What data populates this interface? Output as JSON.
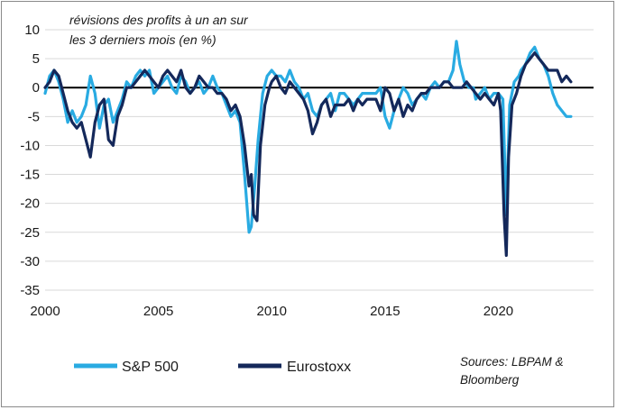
{
  "chart_data": {
    "type": "line",
    "title_lines": [
      "révisions des profits à un an sur",
      "les 3 derniers mois (en %)"
    ],
    "xlabel": "",
    "ylabel": "",
    "xlim": [
      2000,
      2024.2
    ],
    "ylim": [
      -35,
      10
    ],
    "y_ticks": [
      10,
      5,
      0,
      -5,
      -10,
      -15,
      -20,
      -25,
      -30,
      -35
    ],
    "y_tick_labels": [
      "10",
      "5",
      "0",
      "-5",
      "-10",
      "-15",
      "-20",
      "-25",
      "-30",
      "-35"
    ],
    "x_ticks": [
      2000,
      2005,
      2010,
      2015,
      2020
    ],
    "x_tick_labels": [
      "2000",
      "2005",
      "2010",
      "2015",
      "2020"
    ],
    "grid": "horizontal",
    "legend_position": "bottom-left",
    "source": [
      "Sources: LBPAM &",
      "Bloomberg"
    ],
    "series": [
      {
        "name": "S&P 500",
        "color": "#29abe2",
        "x": [
          2000.0,
          2000.2,
          2000.4,
          2000.6,
          2000.8,
          2001.0,
          2001.2,
          2001.4,
          2001.6,
          2001.8,
          2002.0,
          2002.2,
          2002.4,
          2002.6,
          2002.8,
          2003.0,
          2003.2,
          2003.4,
          2003.6,
          2003.8,
          2004.0,
          2004.2,
          2004.4,
          2004.6,
          2004.8,
          2005.0,
          2005.2,
          2005.4,
          2005.6,
          2005.8,
          2006.0,
          2006.2,
          2006.4,
          2006.6,
          2006.8,
          2007.0,
          2007.2,
          2007.4,
          2007.6,
          2007.8,
          2008.0,
          2008.2,
          2008.4,
          2008.6,
          2008.8,
          2009.0,
          2009.1,
          2009.25,
          2009.4,
          2009.6,
          2009.8,
          2010.0,
          2010.2,
          2010.4,
          2010.6,
          2010.8,
          2011.0,
          2011.2,
          2011.4,
          2011.6,
          2011.8,
          2012.0,
          2012.2,
          2012.4,
          2012.6,
          2012.8,
          2013.0,
          2013.2,
          2013.4,
          2013.6,
          2013.8,
          2014.0,
          2014.2,
          2014.4,
          2014.6,
          2014.8,
          2015.0,
          2015.2,
          2015.4,
          2015.6,
          2015.8,
          2016.0,
          2016.2,
          2016.4,
          2016.6,
          2016.8,
          2017.0,
          2017.2,
          2017.4,
          2017.6,
          2017.8,
          2018.0,
          2018.15,
          2018.3,
          2018.5,
          2018.7,
          2018.9,
          2019.0,
          2019.2,
          2019.4,
          2019.6,
          2019.8,
          2020.0,
          2020.2,
          2020.35,
          2020.5,
          2020.7,
          2020.9,
          2021.0,
          2021.2,
          2021.4,
          2021.6,
          2021.8,
          2022.0,
          2022.2,
          2022.4,
          2022.6,
          2022.8,
          2023.0,
          2023.2
        ],
        "y": [
          -1,
          2,
          3,
          1,
          -2,
          -6,
          -4,
          -6,
          -5,
          -3,
          2,
          -1,
          -7,
          -3,
          -2,
          -6,
          -4,
          -2,
          1,
          0,
          2,
          3,
          2,
          3,
          -1,
          0,
          1,
          2,
          0,
          -1,
          2,
          1,
          -1,
          0,
          1,
          -1,
          0,
          2,
          0,
          -1,
          -3,
          -5,
          -4,
          -6,
          -15,
          -25,
          -24,
          -17,
          -9,
          -1,
          2,
          3,
          2,
          2,
          1,
          3,
          1,
          0,
          -2,
          -1,
          -4,
          -5,
          -3,
          -2,
          -1,
          -4,
          -1,
          -1,
          -2,
          -3,
          -2,
          -1,
          -1,
          -1,
          -1,
          0,
          -5,
          -7,
          -4,
          -2,
          0,
          -1,
          -3,
          -2,
          -1,
          -2,
          0,
          1,
          0,
          1,
          1,
          3,
          8,
          4,
          1,
          0,
          0,
          -2,
          -1,
          0,
          -2,
          -1,
          -1,
          -2,
          -22,
          -3,
          1,
          2,
          3,
          4,
          6,
          7,
          5,
          4,
          2,
          -1,
          -3,
          -4,
          -5,
          -5
        ]
      },
      {
        "name": "Eurostoxx",
        "color": "#14285a",
        "x": [
          2000.0,
          2000.2,
          2000.4,
          2000.6,
          2000.8,
          2001.0,
          2001.2,
          2001.4,
          2001.6,
          2001.8,
          2002.0,
          2002.2,
          2002.4,
          2002.6,
          2002.8,
          2003.0,
          2003.2,
          2003.4,
          2003.6,
          2003.8,
          2004.0,
          2004.2,
          2004.4,
          2004.6,
          2004.8,
          2005.0,
          2005.2,
          2005.4,
          2005.6,
          2005.8,
          2006.0,
          2006.2,
          2006.4,
          2006.6,
          2006.8,
          2007.0,
          2007.2,
          2007.4,
          2007.6,
          2007.8,
          2008.0,
          2008.2,
          2008.4,
          2008.6,
          2008.8,
          2009.0,
          2009.1,
          2009.2,
          2009.35,
          2009.5,
          2009.7,
          2009.9,
          2010.0,
          2010.2,
          2010.4,
          2010.6,
          2010.8,
          2011.0,
          2011.2,
          2011.4,
          2011.6,
          2011.8,
          2012.0,
          2012.2,
          2012.4,
          2012.6,
          2012.8,
          2013.0,
          2013.2,
          2013.4,
          2013.6,
          2013.8,
          2014.0,
          2014.2,
          2014.4,
          2014.6,
          2014.8,
          2015.0,
          2015.2,
          2015.4,
          2015.6,
          2015.8,
          2016.0,
          2016.2,
          2016.4,
          2016.6,
          2016.8,
          2017.0,
          2017.2,
          2017.4,
          2017.6,
          2017.8,
          2018.0,
          2018.2,
          2018.4,
          2018.6,
          2018.8,
          2019.0,
          2019.2,
          2019.4,
          2019.6,
          2019.8,
          2020.0,
          2020.1,
          2020.25,
          2020.35,
          2020.45,
          2020.6,
          2020.8,
          2021.0,
          2021.2,
          2021.4,
          2021.6,
          2021.8,
          2022.0,
          2022.2,
          2022.4,
          2022.6,
          2022.8,
          2023.0,
          2023.2
        ],
        "y": [
          0,
          1,
          3,
          2,
          -1,
          -4,
          -6,
          -7,
          -6,
          -9,
          -12,
          -6,
          -3,
          -2,
          -9,
          -10,
          -5,
          -3,
          0,
          0,
          1,
          2,
          3,
          2,
          1,
          0,
          2,
          3,
          2,
          1,
          3,
          0,
          -1,
          0,
          2,
          1,
          0,
          0,
          -1,
          -1,
          -2,
          -4,
          -3,
          -5,
          -10,
          -17,
          -15,
          -22,
          -23,
          -10,
          -3,
          0,
          1,
          2,
          0,
          -1,
          1,
          0,
          -1,
          -2,
          -4,
          -8,
          -6,
          -3,
          -2,
          -5,
          -3,
          -3,
          -3,
          -2,
          -4,
          -2,
          -3,
          -2,
          -2,
          -2,
          -4,
          0,
          -1,
          -4,
          -2,
          -5,
          -3,
          -4,
          -2,
          -1,
          -1,
          0,
          0,
          0,
          1,
          1,
          0,
          0,
          0,
          1,
          0,
          -1,
          -2,
          -1,
          -2,
          -3,
          -1,
          -4,
          -22,
          -29,
          -12,
          -3,
          -1,
          2,
          4,
          5,
          6,
          5,
          4,
          3,
          3,
          3,
          1,
          2,
          1
        ]
      }
    ]
  }
}
